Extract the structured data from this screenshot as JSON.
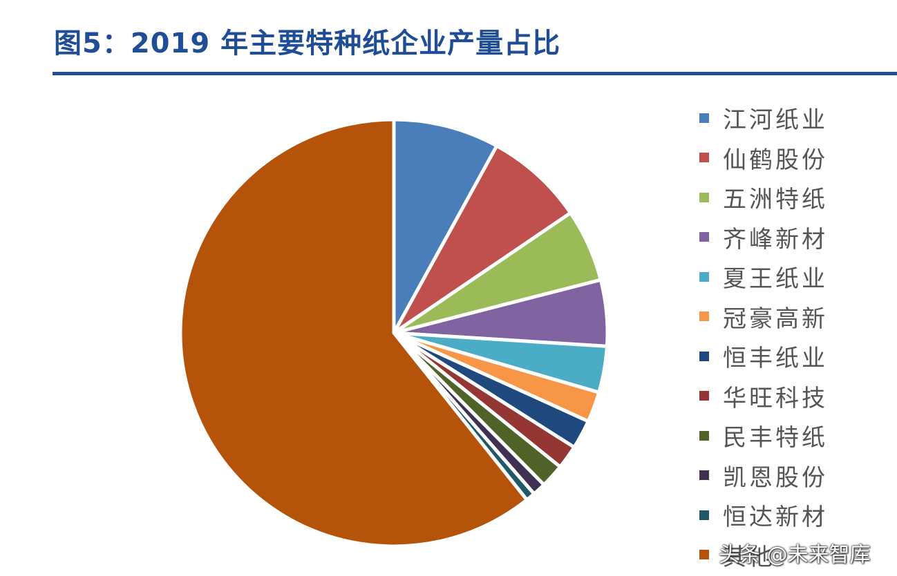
{
  "title": "图5：2019 年主要特种纸企业产量占比",
  "watermark": "头条 @未来智库",
  "chart_data": {
    "type": "pie",
    "title": "图5：2019 年主要特种纸企业产量占比",
    "legend_position": "right",
    "slices": [
      {
        "label": "江河纸业",
        "value": 8.0,
        "color": "#4a7ebb"
      },
      {
        "label": "仙鹤股份",
        "value": 7.5,
        "color": "#c0504d"
      },
      {
        "label": "五洲特纸",
        "value": 5.5,
        "color": "#9bbb59"
      },
      {
        "label": "齐峰新材",
        "value": 5.0,
        "color": "#8064a2"
      },
      {
        "label": "夏王纸业",
        "value": 3.5,
        "color": "#4bacc6"
      },
      {
        "label": "冠豪高新",
        "value": 2.3,
        "color": "#f79646"
      },
      {
        "label": "恒丰纸业",
        "value": 2.2,
        "color": "#1f497d"
      },
      {
        "label": "华旺科技",
        "value": 1.8,
        "color": "#943634"
      },
      {
        "label": "民丰特纸",
        "value": 1.8,
        "color": "#4f6228"
      },
      {
        "label": "凯恩股份",
        "value": 1.0,
        "color": "#3f3151"
      },
      {
        "label": "恒达新材",
        "value": 0.7,
        "color": "#205867"
      },
      {
        "label": "其他",
        "value": 60.7,
        "color": "#b45309"
      }
    ]
  }
}
